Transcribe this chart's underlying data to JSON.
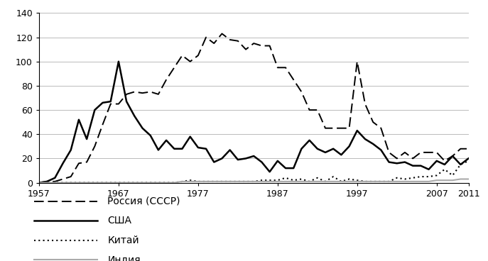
{
  "years": [
    1957,
    1958,
    1959,
    1960,
    1961,
    1962,
    1963,
    1964,
    1965,
    1966,
    1967,
    1968,
    1969,
    1970,
    1971,
    1972,
    1973,
    1974,
    1975,
    1976,
    1977,
    1978,
    1979,
    1980,
    1981,
    1982,
    1983,
    1984,
    1985,
    1986,
    1987,
    1988,
    1989,
    1990,
    1991,
    1992,
    1993,
    1994,
    1995,
    1996,
    1997,
    1998,
    1999,
    2000,
    2001,
    2002,
    2003,
    2004,
    2005,
    2006,
    2007,
    2008,
    2009,
    2010,
    2011
  ],
  "russia": [
    0,
    1,
    1,
    3,
    5,
    16,
    17,
    30,
    48,
    65,
    65,
    73,
    75,
    74,
    75,
    73,
    85,
    95,
    105,
    100,
    105,
    120,
    115,
    123,
    118,
    117,
    110,
    115,
    113,
    113,
    95,
    95,
    85,
    75,
    60,
    60,
    45,
    45,
    45,
    45,
    100,
    65,
    50,
    45,
    25,
    20,
    25,
    20,
    25,
    25,
    25,
    18,
    22,
    28,
    28
  ],
  "usa": [
    0,
    1,
    4,
    16,
    27,
    52,
    36,
    60,
    66,
    67,
    100,
    67,
    55,
    45,
    39,
    27,
    35,
    28,
    28,
    38,
    29,
    28,
    17,
    20,
    27,
    19,
    20,
    22,
    17,
    9,
    18,
    12,
    12,
    28,
    35,
    28,
    25,
    28,
    23,
    30,
    43,
    36,
    32,
    27,
    17,
    16,
    17,
    14,
    14,
    11,
    18,
    15,
    22,
    15,
    20
  ],
  "china": [
    0,
    0,
    0,
    0,
    0,
    0,
    0,
    0,
    0,
    0,
    0,
    0,
    0,
    0,
    0,
    0,
    0,
    0,
    1,
    2,
    1,
    1,
    1,
    1,
    1,
    1,
    1,
    1,
    2,
    2,
    2,
    4,
    2,
    3,
    1,
    4,
    1,
    5,
    1,
    3,
    2,
    1,
    1,
    1,
    1,
    4,
    3,
    4,
    5,
    5,
    6,
    11,
    6,
    15,
    18
  ],
  "india": [
    0,
    0,
    0,
    0,
    0,
    0,
    0,
    0,
    0,
    0,
    0,
    0,
    0,
    0,
    0,
    0,
    0,
    0,
    1,
    1,
    1,
    1,
    1,
    1,
    1,
    1,
    1,
    1,
    1,
    1,
    1,
    1,
    1,
    1,
    1,
    1,
    1,
    1,
    1,
    1,
    1,
    1,
    1,
    1,
    1,
    1,
    1,
    1,
    1,
    1,
    2,
    2,
    2,
    3,
    3
  ],
  "russia_color": "#000000",
  "russia_style": "--",
  "usa_color": "#000000",
  "usa_style": "-",
  "china_color": "#000000",
  "china_style": ":",
  "india_color": "#aaaaaa",
  "india_style": "-",
  "ylim": [
    0,
    140
  ],
  "yticks": [
    0,
    20,
    40,
    60,
    80,
    100,
    120,
    140
  ],
  "xticks": [
    1957,
    1967,
    1977,
    1987,
    1997,
    2007,
    2011
  ],
  "legend_labels": [
    "Россия (СССР)",
    "США",
    "Китай",
    "Индия"
  ],
  "background_color": "#ffffff",
  "figsize": [
    6.87,
    3.68
  ],
  "dpi": 100
}
